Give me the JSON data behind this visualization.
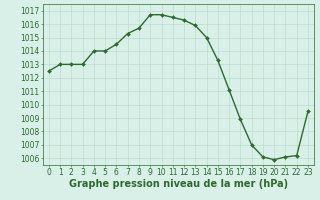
{
  "x": [
    0,
    1,
    2,
    3,
    4,
    5,
    6,
    7,
    8,
    9,
    10,
    11,
    12,
    13,
    14,
    15,
    16,
    17,
    18,
    19,
    20,
    21,
    22,
    23
  ],
  "y": [
    1012.5,
    1013.0,
    1013.0,
    1013.0,
    1014.0,
    1014.0,
    1014.5,
    1015.3,
    1015.7,
    1016.7,
    1016.7,
    1016.5,
    1016.3,
    1015.9,
    1015.0,
    1013.3,
    1011.1,
    1008.9,
    1007.0,
    1006.1,
    1005.9,
    1006.1,
    1006.2,
    1009.5
  ],
  "xlabel": "Graphe pression niveau de la mer (hPa)",
  "ylim": [
    1005.5,
    1017.5
  ],
  "xlim": [
    -0.5,
    23.5
  ],
  "yticks": [
    1006,
    1007,
    1008,
    1009,
    1010,
    1011,
    1012,
    1013,
    1014,
    1015,
    1016,
    1017
  ],
  "xticks": [
    0,
    1,
    2,
    3,
    4,
    5,
    6,
    7,
    8,
    9,
    10,
    11,
    12,
    13,
    14,
    15,
    16,
    17,
    18,
    19,
    20,
    21,
    22,
    23
  ],
  "line_color": "#2d6a2d",
  "bg_color": "#d8f0e8",
  "grid_color": "#b8d8c8",
  "xlabel_fontsize": 7,
  "tick_fontsize": 5.5,
  "marker_size": 2.0,
  "line_width": 1.0
}
